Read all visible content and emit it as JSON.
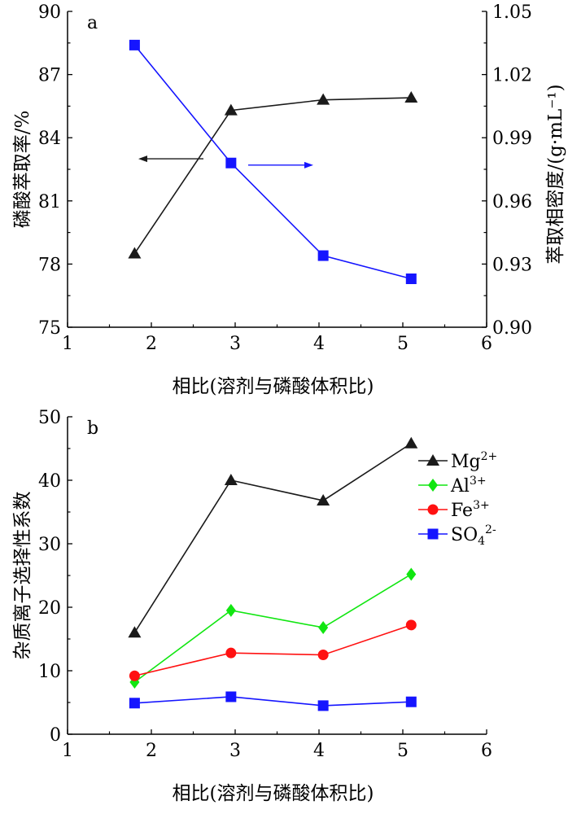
{
  "chart_data": [
    {
      "panel_label": "a",
      "type": "line",
      "xlabel": "相比(溶剂与磷酸体积比)",
      "ylabel_left": "磷酸萃取率/%",
      "ylabel_right": "萃取相密度/(g·mL⁻¹)",
      "xlim": [
        1,
        6
      ],
      "x_ticks": [
        "1",
        "2",
        "3",
        "4",
        "5",
        "6"
      ],
      "ylim_left": [
        75,
        90
      ],
      "y_ticks_left": [
        "75",
        "78",
        "81",
        "84",
        "87",
        "90"
      ],
      "ylim_right": [
        0.9,
        1.05
      ],
      "y_ticks_right": [
        "0.90",
        "0.93",
        "0.96",
        "0.99",
        "1.02",
        "1.05"
      ],
      "series": [
        {
          "axis": "left",
          "marker": "triangle",
          "color": "#1a1a1a",
          "x": [
            1.8,
            2.95,
            4.05,
            5.1
          ],
          "y": [
            78.5,
            85.3,
            85.8,
            85.9
          ]
        },
        {
          "axis": "right",
          "marker": "square",
          "color": "#1515ff",
          "x": [
            1.8,
            2.95,
            4.05,
            5.1
          ],
          "y": [
            1.034,
            0.978,
            0.934,
            0.923
          ]
        }
      ],
      "annotations": [
        {
          "type": "arrow",
          "direction": "left",
          "points_to_axis": "left",
          "color": "#1a1a1a",
          "at_y": 83.0
        },
        {
          "type": "arrow",
          "direction": "right",
          "points_to_axis": "right",
          "color": "#1515ff",
          "at_y": 0.977
        }
      ]
    },
    {
      "panel_label": "b",
      "type": "line",
      "xlabel": "相比(溶剂与磷酸体积比)",
      "ylabel": "杂质离子选择性系数",
      "xlim": [
        1,
        6
      ],
      "x_ticks": [
        "1",
        "2",
        "3",
        "4",
        "5",
        "6"
      ],
      "ylim": [
        0,
        50
      ],
      "y_ticks": [
        "0",
        "10",
        "20",
        "30",
        "40",
        "50"
      ],
      "legend_position": "top-right",
      "series": [
        {
          "name": "Mg2+",
          "base": "Mg",
          "sup": "2+",
          "sub": "",
          "marker": "triangle",
          "color": "#1a1a1a",
          "x": [
            1.8,
            2.95,
            4.05,
            5.1
          ],
          "y": [
            16.0,
            40.0,
            36.8,
            45.8
          ]
        },
        {
          "name": "Al3+",
          "base": "Al",
          "sup": "3+",
          "sub": "",
          "marker": "diamond",
          "color": "#11e611",
          "x": [
            1.8,
            2.95,
            4.05,
            5.1
          ],
          "y": [
            8.2,
            19.5,
            16.8,
            25.2
          ]
        },
        {
          "name": "Fe3+",
          "base": "Fe",
          "sup": "3+",
          "sub": "",
          "marker": "circle",
          "color": "#ff1111",
          "x": [
            1.8,
            2.95,
            4.05,
            5.1
          ],
          "y": [
            9.2,
            12.8,
            12.5,
            17.2
          ]
        },
        {
          "name": "SO42-",
          "base": "SO",
          "sub": "4",
          "sup": "2-",
          "marker": "square",
          "color": "#1515ff",
          "x": [
            1.8,
            2.95,
            4.05,
            5.1
          ],
          "y": [
            4.9,
            5.9,
            4.5,
            5.1
          ]
        }
      ]
    }
  ]
}
